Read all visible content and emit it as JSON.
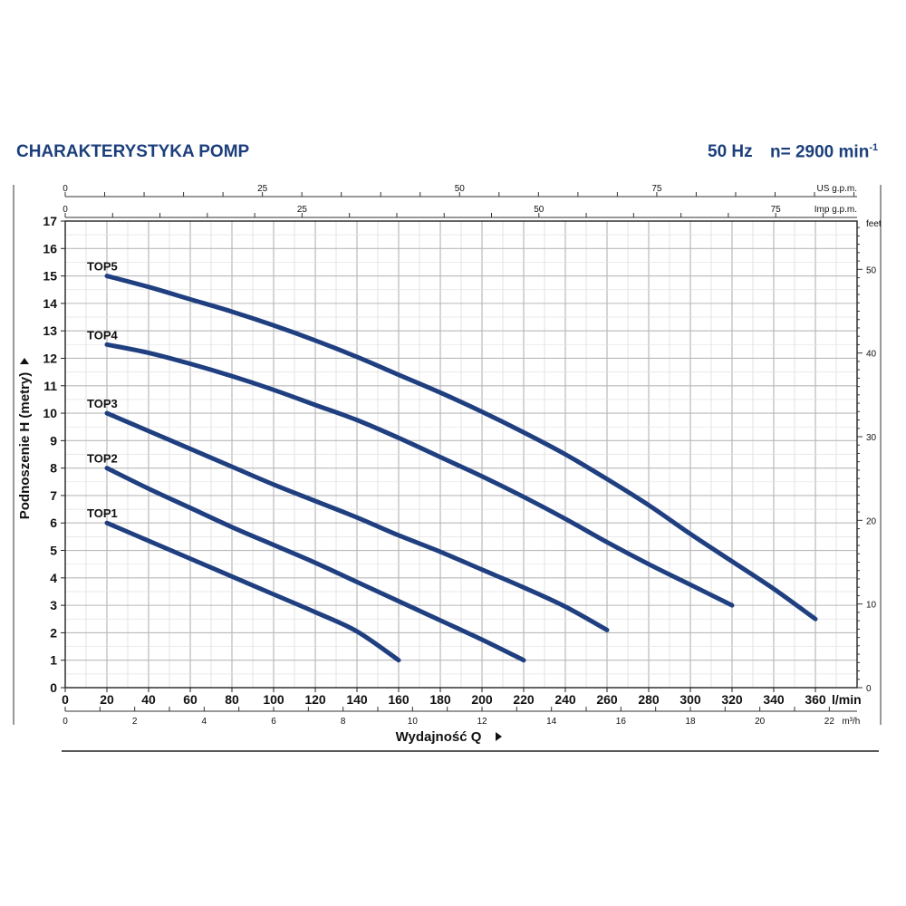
{
  "header": {
    "title": "CHARAKTERYSTYKA POMP",
    "frequency": "50 Hz",
    "speed": "n= 2900 min",
    "speed_exp": "-1"
  },
  "chart_data": {
    "type": "line",
    "xlabel": "Wydajność Q",
    "ylabel": "Podnoszenie H (metry)",
    "x_unit": "l/min",
    "xlim": [
      0,
      380
    ],
    "ylim": [
      0,
      17
    ],
    "grid": true,
    "x_ticks": [
      0,
      20,
      40,
      60,
      80,
      100,
      120,
      140,
      160,
      180,
      200,
      220,
      240,
      260,
      280,
      300,
      320,
      340,
      360
    ],
    "y_ticks": [
      0,
      1,
      2,
      3,
      4,
      5,
      6,
      7,
      8,
      9,
      10,
      11,
      12,
      13,
      14,
      15,
      16,
      17
    ],
    "secondary_axes": {
      "us_gpm": {
        "label": "US g.p.m.",
        "ticks": [
          0,
          25,
          50,
          75
        ]
      },
      "imp_gpm": {
        "label": "Imp g.p.m.",
        "ticks": [
          0,
          25,
          50,
          75
        ]
      },
      "m3h": {
        "label": "m³/h",
        "ticks": [
          0,
          2,
          4,
          6,
          8,
          10,
          12,
          14,
          16,
          18,
          20,
          22
        ]
      },
      "feet": {
        "label": "feet",
        "ticks": [
          0,
          10,
          20,
          30,
          40,
          50
        ]
      }
    },
    "series": [
      {
        "name": "TOP1",
        "points": [
          [
            20,
            6.0
          ],
          [
            40,
            5.35
          ],
          [
            60,
            4.7
          ],
          [
            80,
            4.05
          ],
          [
            100,
            3.4
          ],
          [
            120,
            2.75
          ],
          [
            140,
            2.05
          ],
          [
            160,
            1.0
          ]
        ]
      },
      {
        "name": "TOP2",
        "points": [
          [
            20,
            8.0
          ],
          [
            40,
            7.25
          ],
          [
            60,
            6.55
          ],
          [
            80,
            5.85
          ],
          [
            100,
            5.2
          ],
          [
            120,
            4.55
          ],
          [
            140,
            3.85
          ],
          [
            160,
            3.15
          ],
          [
            180,
            2.45
          ],
          [
            200,
            1.75
          ],
          [
            220,
            1.0
          ]
        ]
      },
      {
        "name": "TOP3",
        "points": [
          [
            20,
            10.0
          ],
          [
            40,
            9.35
          ],
          [
            60,
            8.7
          ],
          [
            80,
            8.05
          ],
          [
            100,
            7.4
          ],
          [
            120,
            6.8
          ],
          [
            140,
            6.2
          ],
          [
            160,
            5.55
          ],
          [
            180,
            4.95
          ],
          [
            200,
            4.3
          ],
          [
            220,
            3.65
          ],
          [
            240,
            2.95
          ],
          [
            260,
            2.1
          ]
        ]
      },
      {
        "name": "TOP4",
        "points": [
          [
            20,
            12.5
          ],
          [
            40,
            12.2
          ],
          [
            60,
            11.8
          ],
          [
            80,
            11.35
          ],
          [
            100,
            10.85
          ],
          [
            120,
            10.3
          ],
          [
            140,
            9.75
          ],
          [
            160,
            9.1
          ],
          [
            180,
            8.4
          ],
          [
            200,
            7.7
          ],
          [
            220,
            6.95
          ],
          [
            240,
            6.15
          ],
          [
            260,
            5.3
          ],
          [
            280,
            4.5
          ],
          [
            300,
            3.75
          ],
          [
            320,
            3.0
          ]
        ]
      },
      {
        "name": "TOP5",
        "points": [
          [
            20,
            15.0
          ],
          [
            40,
            14.6
          ],
          [
            60,
            14.15
          ],
          [
            80,
            13.7
          ],
          [
            100,
            13.2
          ],
          [
            120,
            12.65
          ],
          [
            140,
            12.05
          ],
          [
            160,
            11.4
          ],
          [
            180,
            10.75
          ],
          [
            200,
            10.05
          ],
          [
            220,
            9.3
          ],
          [
            240,
            8.5
          ],
          [
            260,
            7.6
          ],
          [
            280,
            6.65
          ],
          [
            300,
            5.6
          ],
          [
            320,
            4.6
          ],
          [
            340,
            3.6
          ],
          [
            360,
            2.5
          ]
        ]
      }
    ],
    "colors": {
      "curve": "#1f3f80",
      "header": "#1c3f7c",
      "grid": "#b9b9b9"
    }
  }
}
